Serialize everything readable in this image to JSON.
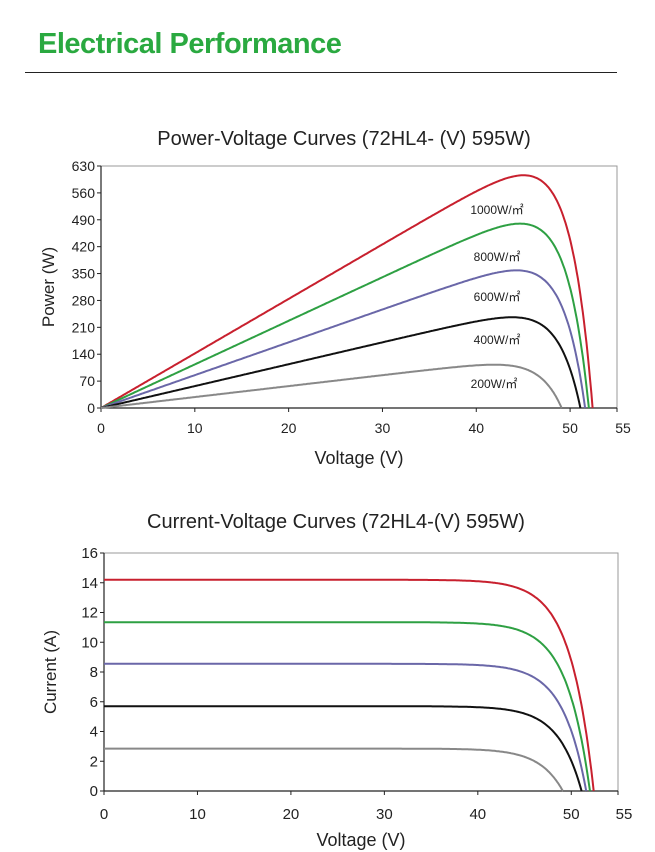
{
  "header": {
    "title": "Electrical Performance"
  },
  "chart_data": [
    {
      "type": "line",
      "title": "Power-Voltage Curves (72HL4- (V)  595W)",
      "xlabel": "Voltage (V)",
      "ylabel": "Power (W)",
      "xlim": [
        0,
        55
      ],
      "ylim": [
        0,
        630
      ],
      "xticks": [
        0,
        10,
        20,
        30,
        40,
        50,
        55
      ],
      "yticks": [
        0,
        70,
        140,
        210,
        280,
        350,
        420,
        490,
        560,
        630
      ],
      "grid": false,
      "series": [
        {
          "name": "1000W/㎡",
          "color": "#c8202e",
          "isc": 14.2,
          "voc": 52.4,
          "pmax": 595
        },
        {
          "name": "800W/㎡",
          "color": "#2ea043",
          "isc": 11.35,
          "voc": 52.0,
          "pmax": 470
        },
        {
          "name": "600W/㎡",
          "color": "#6a67a8",
          "isc": 8.55,
          "voc": 51.6,
          "pmax": 352
        },
        {
          "name": "400W/㎡",
          "color": "#111111",
          "isc": 5.7,
          "voc": 51.1,
          "pmax": 233
        },
        {
          "name": "200W/㎡",
          "color": "#888888",
          "isc": 2.85,
          "voc": 49.1,
          "pmax": 117
        }
      ]
    },
    {
      "type": "line",
      "title": "Current-Voltage Curves (72HL4-(V) 595W)",
      "xlabel": "Voltage (V)",
      "ylabel": "Current (A)",
      "xlim": [
        0,
        55
      ],
      "ylim": [
        0,
        16
      ],
      "xticks": [
        0,
        10,
        20,
        30,
        40,
        50,
        55
      ],
      "yticks": [
        0,
        2,
        4,
        6,
        8,
        10,
        12,
        14,
        16
      ],
      "grid": false,
      "series": [
        {
          "color": "#c8202e",
          "isc": 14.2,
          "voc": 52.4
        },
        {
          "color": "#2ea043",
          "isc": 11.35,
          "voc": 52.0
        },
        {
          "color": "#6a67a8",
          "isc": 8.55,
          "voc": 51.6
        },
        {
          "color": "#111111",
          "isc": 5.7,
          "voc": 51.1
        },
        {
          "color": "#888888",
          "isc": 2.85,
          "voc": 49.1
        }
      ]
    }
  ]
}
